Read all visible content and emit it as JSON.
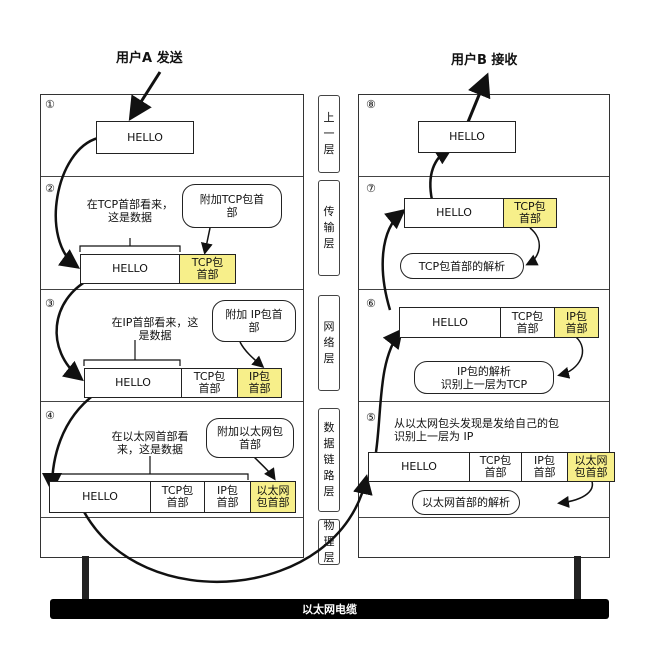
{
  "titles": {
    "sender": "用户A 发送",
    "receiver": "用户B 接收"
  },
  "cable_label": "以太网电缆",
  "layers": {
    "app": "上\n一\n层",
    "transport": "传\n输\n层",
    "network": "网\n络\n层",
    "datalink": "数\n据\n链\n路\n层",
    "physical": "物\n理\n层"
  },
  "steps": [
    "①",
    "②",
    "③",
    "④",
    "⑤",
    "⑥",
    "⑦",
    "⑧"
  ],
  "packet": {
    "hello": "HELLO",
    "tcp_header": "TCP包\n首部",
    "ip_header": "IP包\n首部",
    "eth_header": "以太网\n包首部"
  },
  "left": {
    "transport_note": "在TCP首部看来，\n这是数据",
    "transport_bubble": "附加TCP包首\n部",
    "network_note": "在IP首部看来，这\n是数据",
    "network_bubble": "附加 IP包首\n部",
    "datalink_note": "在以太网首部看\n来，这是数据",
    "datalink_bubble": "附加以太网包\n首部"
  },
  "right": {
    "transport_bubble": "TCP包首部的解析",
    "network_bubble": "IP包的解析\n识别上一层为TCP",
    "datalink_note": "从以太网包头发现是发给自己的包\n识别上一层为 IP",
    "datalink_bubble": "以太网首部的解析"
  }
}
